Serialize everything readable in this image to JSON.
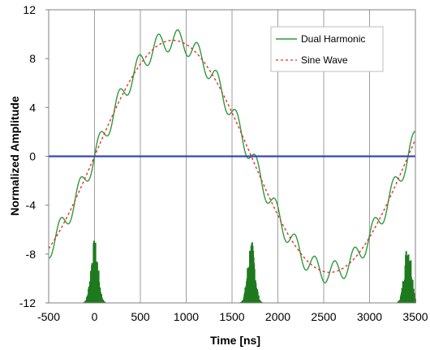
{
  "chart_data": {
    "type": "line",
    "xlabel": "Time [ns]",
    "ylabel": "Normalized Amplitude",
    "xlim": [
      -500,
      3500
    ],
    "ylim": [
      -12,
      12
    ],
    "x_ticks": [
      -500,
      0,
      500,
      1000,
      1500,
      2000,
      2500,
      3000,
      3500
    ],
    "y_ticks": [
      -12,
      -8,
      -4,
      0,
      4,
      8,
      12
    ],
    "vertical_gridlines": true,
    "horizontal_gridlines": false,
    "legend_position": "top-right",
    "period_ns": 3420,
    "series": [
      {
        "name": "Dual Harmonic",
        "style": "solid",
        "color": "#2e9a3a",
        "amplitude": 9.5,
        "harmonic_amplitude": 0.9,
        "harmonic_number": 16,
        "phase_offset_ns": 0
      },
      {
        "name": "Sine Wave",
        "style": "dashed",
        "color": "#e53030",
        "amplitude": 9.5,
        "phase_offset_ns": 0
      },
      {
        "name": "",
        "style": "solid",
        "color": "#3949ab",
        "constant": 0
      }
    ],
    "bunches": [
      {
        "center_ns": 0,
        "peak": -6.8,
        "base": -12
      },
      {
        "center_ns": 1710,
        "peak": -6.8,
        "base": -12
      },
      {
        "center_ns": 3420,
        "peak": -6.8,
        "base": -12
      }
    ],
    "bunch_color": "#1f7a1f"
  }
}
